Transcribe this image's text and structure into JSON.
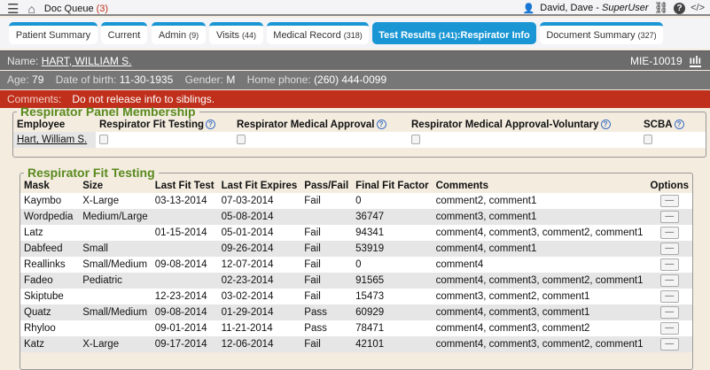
{
  "topbar": {
    "doc_queue": "Doc Queue",
    "doc_queue_count": "(3)",
    "user": "David, Dave",
    "role": "SuperUser"
  },
  "tabs": [
    {
      "label": "Patient Summary",
      "count": ""
    },
    {
      "label": "Current",
      "count": ""
    },
    {
      "label": "Admin",
      "count": "(9)"
    },
    {
      "label": "Visits",
      "count": "(44)"
    },
    {
      "label": "Medical Record",
      "count": "(318)"
    },
    {
      "label": "Test Results",
      "count": "(141)",
      "suffix": ":Respirator Info",
      "active": true
    },
    {
      "label": "Document Summary",
      "count": "(327)"
    }
  ],
  "patient": {
    "name_label": "Name:",
    "name": "HART, WILLIAM S.",
    "mrn": "MIE-10019",
    "age_label": "Age:",
    "age": "79",
    "dob_label": "Date of birth:",
    "dob": "11-30-1935",
    "gender_label": "Gender:",
    "gender": "M",
    "phone_label": "Home phone:",
    "phone": "(260) 444-0099",
    "comments_label": "Comments:",
    "comments": "Do not release info to siblings."
  },
  "panel": {
    "legend": "Respirator Panel Membership",
    "headers": [
      "Employee",
      "Respirator Fit Testing",
      "Respirator Medical Approval",
      "Respirator Medical Approval-Voluntary",
      "SCBA"
    ],
    "employee": "Hart, William S."
  },
  "fit": {
    "legend": "Respirator Fit Testing",
    "headers": [
      "Mask",
      "Size",
      "Last Fit Test",
      "Last Fit Expires",
      "Pass/Fail",
      "Final Fit Factor",
      "Comments",
      "Options"
    ],
    "rows": [
      [
        "Kaymbo",
        "X-Large",
        "03-13-2014",
        "07-03-2014",
        "Fail",
        "0",
        "comment2, comment1"
      ],
      [
        "Wordpedia",
        "Medium/Large",
        "",
        "05-08-2014",
        "",
        "36747",
        "comment3, comment1"
      ],
      [
        "Latz",
        "",
        "01-15-2014",
        "05-01-2014",
        "Fail",
        "94341",
        "comment4, comment3, comment2, comment1"
      ],
      [
        "Dabfeed",
        "Small",
        "",
        "09-26-2014",
        "Fail",
        "53919",
        "comment4, comment1"
      ],
      [
        "Reallinks",
        "Small/Medium",
        "09-08-2014",
        "12-07-2014",
        "Fail",
        "0",
        "comment4"
      ],
      [
        "Fadeo",
        "Pediatric",
        "",
        "02-23-2014",
        "Fail",
        "91565",
        "comment4, comment3, comment2, comment1"
      ],
      [
        "Skiptube",
        "",
        "12-23-2014",
        "03-02-2014",
        "Fail",
        "15473",
        "comment3, comment2, comment1"
      ],
      [
        "Quatz",
        "Small/Medium",
        "09-08-2014",
        "01-29-2014",
        "Pass",
        "60929",
        "comment4, comment3, comment1"
      ],
      [
        "Rhyloo",
        "",
        "09-01-2014",
        "11-21-2014",
        "Pass",
        "78471",
        "comment4, comment3, comment2"
      ],
      [
        "Katz",
        "X-Large",
        "09-17-2014",
        "12-06-2014",
        "Fail",
        "42101",
        "comment4, comment3, comment2, comment1"
      ]
    ],
    "option_label": "—"
  }
}
